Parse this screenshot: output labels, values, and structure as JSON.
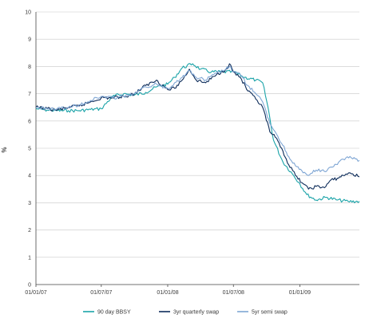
{
  "chart_data": {
    "type": "line",
    "title": "",
    "xlabel": "",
    "ylabel": "%",
    "ylim": [
      0,
      10
    ],
    "yticks": [
      "0",
      "1",
      "2",
      "3",
      "4",
      "5",
      "6",
      "7",
      "8",
      "9",
      "10"
    ],
    "xlim": [
      "2007-01-01",
      "2009-06-15"
    ],
    "xticks": [
      {
        "date": "2007-01-01",
        "label": "01/01/07"
      },
      {
        "date": "2007-07-01",
        "label": "01/07/07"
      },
      {
        "date": "2008-01-01",
        "label": "01/01/08"
      },
      {
        "date": "2008-07-01",
        "label": "01/07/08"
      },
      {
        "date": "2009-01-01",
        "label": "01/01/09"
      }
    ],
    "grid": "horizontal",
    "legend_position": "bottom",
    "series": [
      {
        "name": "90 day BBSY",
        "color": "#1aa3a8",
        "points": [
          [
            "2007-01-01",
            6.45
          ],
          [
            "2007-02-01",
            6.4
          ],
          [
            "2007-03-01",
            6.38
          ],
          [
            "2007-04-01",
            6.38
          ],
          [
            "2007-05-01",
            6.38
          ],
          [
            "2007-06-01",
            6.42
          ],
          [
            "2007-07-01",
            6.45
          ],
          [
            "2007-08-01",
            6.9
          ],
          [
            "2007-09-01",
            7.0
          ],
          [
            "2007-10-01",
            6.95
          ],
          [
            "2007-11-01",
            7.05
          ],
          [
            "2007-12-01",
            7.25
          ],
          [
            "2008-01-01",
            7.35
          ],
          [
            "2008-01-20",
            7.6
          ],
          [
            "2008-02-10",
            7.95
          ],
          [
            "2008-03-10",
            8.1
          ],
          [
            "2008-04-01",
            7.9
          ],
          [
            "2008-05-01",
            7.8
          ],
          [
            "2008-06-01",
            7.8
          ],
          [
            "2008-07-01",
            7.8
          ],
          [
            "2008-08-01",
            7.6
          ],
          [
            "2008-09-01",
            7.5
          ],
          [
            "2008-09-20",
            7.4
          ],
          [
            "2008-10-05",
            6.5
          ],
          [
            "2008-10-20",
            5.3
          ],
          [
            "2008-11-15",
            4.5
          ],
          [
            "2008-12-15",
            4.0
          ],
          [
            "2009-01-01",
            3.7
          ],
          [
            "2009-01-20",
            3.3
          ],
          [
            "2009-02-15",
            3.1
          ],
          [
            "2009-03-15",
            3.2
          ],
          [
            "2009-04-15",
            3.1
          ],
          [
            "2009-05-15",
            3.05
          ],
          [
            "2009-06-15",
            3.05
          ]
        ]
      },
      {
        "name": "3yr quarterly swap",
        "color": "#0d2c5a",
        "points": [
          [
            "2007-01-01",
            6.5
          ],
          [
            "2007-02-01",
            6.45
          ],
          [
            "2007-03-01",
            6.4
          ],
          [
            "2007-04-01",
            6.5
          ],
          [
            "2007-05-01",
            6.55
          ],
          [
            "2007-06-01",
            6.7
          ],
          [
            "2007-07-01",
            6.85
          ],
          [
            "2007-08-01",
            6.85
          ],
          [
            "2007-09-01",
            6.9
          ],
          [
            "2007-10-01",
            7.0
          ],
          [
            "2007-11-01",
            7.3
          ],
          [
            "2007-12-01",
            7.5
          ],
          [
            "2008-01-01",
            7.15
          ],
          [
            "2008-01-20",
            7.2
          ],
          [
            "2008-02-10",
            7.5
          ],
          [
            "2008-03-01",
            7.9
          ],
          [
            "2008-03-20",
            7.5
          ],
          [
            "2008-04-15",
            7.4
          ],
          [
            "2008-05-15",
            7.7
          ],
          [
            "2008-06-10",
            7.9
          ],
          [
            "2008-06-20",
            8.1
          ],
          [
            "2008-07-01",
            7.8
          ],
          [
            "2008-07-20",
            7.6
          ],
          [
            "2008-08-10",
            7.1
          ],
          [
            "2008-09-01",
            6.8
          ],
          [
            "2008-09-20",
            6.5
          ],
          [
            "2008-10-10",
            5.6
          ],
          [
            "2008-10-25",
            5.4
          ],
          [
            "2008-11-15",
            4.9
          ],
          [
            "2008-12-01",
            4.4
          ],
          [
            "2008-12-20",
            4.0
          ],
          [
            "2009-01-10",
            3.7
          ],
          [
            "2009-01-25",
            3.5
          ],
          [
            "2009-02-15",
            3.6
          ],
          [
            "2009-03-10",
            3.55
          ],
          [
            "2009-03-25",
            3.8
          ],
          [
            "2009-04-15",
            3.9
          ],
          [
            "2009-05-01",
            4.0
          ],
          [
            "2009-05-20",
            4.1
          ],
          [
            "2009-06-15",
            3.95
          ]
        ]
      },
      {
        "name": "5yr semi swap",
        "color": "#7fa6d4",
        "points": [
          [
            "2007-01-01",
            6.5
          ],
          [
            "2007-02-01",
            6.45
          ],
          [
            "2007-03-01",
            6.45
          ],
          [
            "2007-04-01",
            6.5
          ],
          [
            "2007-05-01",
            6.6
          ],
          [
            "2007-06-01",
            6.75
          ],
          [
            "2007-07-01",
            6.9
          ],
          [
            "2007-08-01",
            6.85
          ],
          [
            "2007-09-01",
            6.9
          ],
          [
            "2007-10-01",
            7.0
          ],
          [
            "2007-11-01",
            7.25
          ],
          [
            "2007-12-01",
            7.35
          ],
          [
            "2008-01-01",
            7.2
          ],
          [
            "2008-01-20",
            7.4
          ],
          [
            "2008-02-10",
            7.6
          ],
          [
            "2008-03-01",
            7.85
          ],
          [
            "2008-03-20",
            7.6
          ],
          [
            "2008-04-15",
            7.5
          ],
          [
            "2008-05-15",
            7.75
          ],
          [
            "2008-06-10",
            7.9
          ],
          [
            "2008-06-20",
            8.0
          ],
          [
            "2008-07-01",
            7.8
          ],
          [
            "2008-07-20",
            7.7
          ],
          [
            "2008-08-10",
            7.3
          ],
          [
            "2008-09-01",
            7.0
          ],
          [
            "2008-09-20",
            6.7
          ],
          [
            "2008-10-10",
            5.9
          ],
          [
            "2008-10-25",
            5.6
          ],
          [
            "2008-11-15",
            5.1
          ],
          [
            "2008-12-01",
            4.7
          ],
          [
            "2008-12-20",
            4.35
          ],
          [
            "2009-01-10",
            4.1
          ],
          [
            "2009-01-25",
            4.0
          ],
          [
            "2009-02-15",
            4.2
          ],
          [
            "2009-03-10",
            4.15
          ],
          [
            "2009-03-25",
            4.3
          ],
          [
            "2009-04-15",
            4.4
          ],
          [
            "2009-05-01",
            4.6
          ],
          [
            "2009-05-20",
            4.7
          ],
          [
            "2009-06-15",
            4.55
          ]
        ]
      }
    ]
  }
}
